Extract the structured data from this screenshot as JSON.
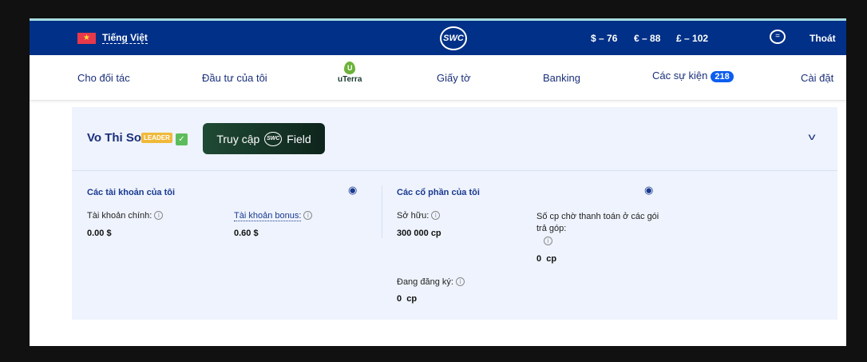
{
  "header": {
    "language": "Tiếng Việt",
    "logo": "SWC",
    "rates": [
      "$ – 76",
      "€ – 88",
      "£ – 102"
    ],
    "chat_icon": "chat-bubble-icon",
    "logout": "Thoát",
    "flag": "vietnam-flag"
  },
  "nav": {
    "items": [
      "Cho đối tác",
      "Đầu tư của tôi",
      "Giấy tờ",
      "Banking",
      "Các sự kiện",
      "Cài đặt"
    ],
    "uterra": "uTerra",
    "events_count": "218"
  },
  "profile": {
    "name": "Vo Thi So",
    "badge": "LEADER",
    "verified": true,
    "access_button": {
      "prefix": "Truy cập",
      "logo": "SWC",
      "suffix": "Field"
    }
  },
  "accounts": {
    "title": "Các tài khoản của tôi",
    "main_label": "Tài khoản chính:",
    "main_value": "0.00 $",
    "bonus_label": "Tài khoản bonus:",
    "bonus_value": "0.60 $"
  },
  "shares": {
    "title": "Các cổ phần của tôi",
    "owned_label": "Sở hữu:",
    "owned_value": "300 000 cp",
    "pending_label": "Số cp chờ thanh toán ở các gói trả góp:",
    "pending_value": "0  cp",
    "registering_label": "Đang đăng ký:",
    "registering_value": "0  cp"
  },
  "colors": {
    "header_bg": "#003087",
    "card_bg": "#eef3fd",
    "badge": "#0d5df0",
    "leader": "#f0b93a"
  }
}
